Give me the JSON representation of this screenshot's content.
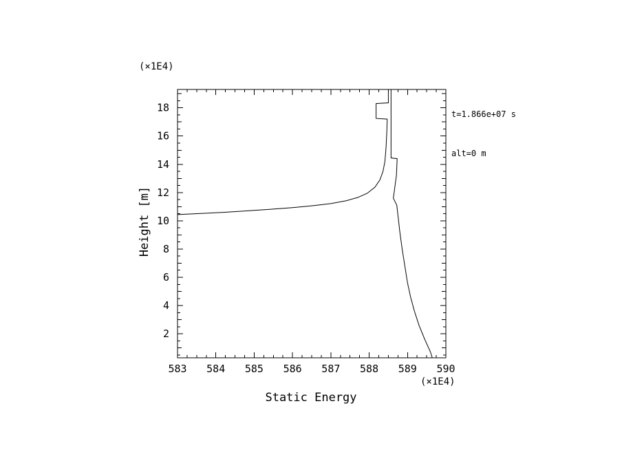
{
  "page": {
    "background": "#ffffff"
  },
  "chart_data": {
    "type": "line",
    "title": "",
    "xlabel": "Static Energy",
    "ylabel": "Height [m]",
    "x_unit_label": "(×1E4)",
    "y_unit_label": "(×1E4)",
    "annotations": [
      "t=1.866e+07 s",
      "alt=0 m"
    ],
    "xlim": [
      583,
      590
    ],
    "ylim": [
      0.3,
      19.3
    ],
    "xticks": [
      583,
      584,
      585,
      586,
      587,
      588,
      589,
      590
    ],
    "yticks": [
      2,
      4,
      6,
      8,
      10,
      12,
      14,
      16,
      18
    ],
    "x_minor_step": 0.25,
    "y_minor_step": 0.5,
    "grid": false,
    "line_color": "#000000",
    "frame_color": "#000000",
    "series": [
      {
        "name": "static-energy-profile",
        "points": [
          [
            583.0,
            10.44
          ],
          [
            583.6,
            10.52
          ],
          [
            584.2,
            10.6
          ],
          [
            584.8,
            10.7
          ],
          [
            585.4,
            10.81
          ],
          [
            586.0,
            10.93
          ],
          [
            586.5,
            11.06
          ],
          [
            587.0,
            11.22
          ],
          [
            587.4,
            11.42
          ],
          [
            587.7,
            11.65
          ],
          [
            587.95,
            11.95
          ],
          [
            588.15,
            12.38
          ],
          [
            588.28,
            12.9
          ],
          [
            588.36,
            13.5
          ],
          [
            588.41,
            14.2
          ],
          [
            588.44,
            15.2
          ],
          [
            588.46,
            16.3
          ],
          [
            588.47,
            17.2
          ],
          [
            588.18,
            17.25
          ],
          [
            588.18,
            18.3
          ],
          [
            588.5,
            18.35
          ],
          [
            588.5,
            19.6
          ],
          [
            588.57,
            19.6
          ],
          [
            588.57,
            14.45
          ],
          [
            588.73,
            14.4
          ],
          [
            588.71,
            13.2
          ],
          [
            588.66,
            12.2
          ],
          [
            588.63,
            11.6
          ],
          [
            588.72,
            11.1
          ],
          [
            588.75,
            10.4
          ],
          [
            588.8,
            9.2
          ],
          [
            588.86,
            8.0
          ],
          [
            588.93,
            6.8
          ],
          [
            589.0,
            5.6
          ],
          [
            589.08,
            4.6
          ],
          [
            589.18,
            3.6
          ],
          [
            589.3,
            2.6
          ],
          [
            589.45,
            1.6
          ],
          [
            589.6,
            0.7
          ],
          [
            589.7,
            -0.2
          ]
        ]
      }
    ]
  }
}
